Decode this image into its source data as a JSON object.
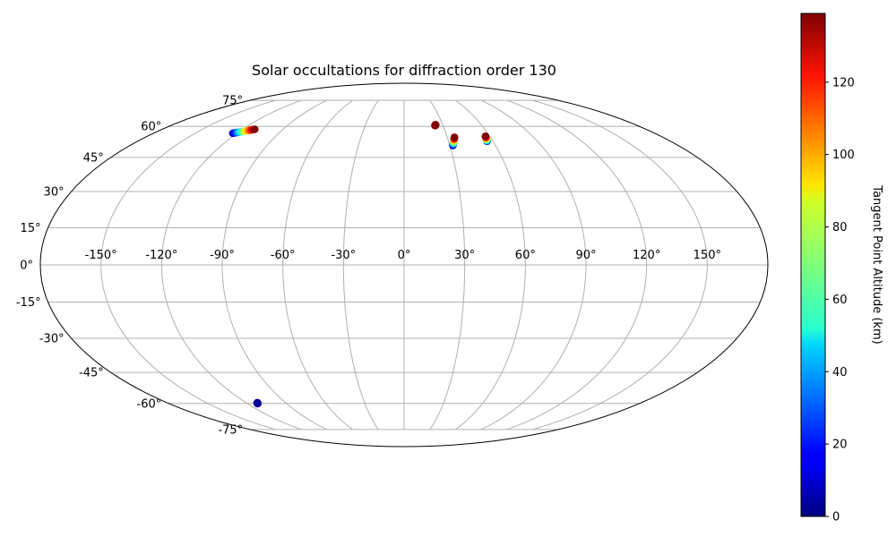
{
  "chart_data": {
    "type": "scatter",
    "projection": "mollweide",
    "title": "Solar occultations for diffraction order 130",
    "lon_ticks": [
      -150,
      -120,
      -90,
      -60,
      -30,
      0,
      30,
      60,
      90,
      120,
      150
    ],
    "lat_ticks": [
      -75,
      -60,
      -45,
      -30,
      -15,
      0,
      15,
      30,
      45,
      60,
      75
    ],
    "lon_tick_labels": [
      "-150°",
      "-120°",
      "-90°",
      "-60°",
      "-30°",
      "0°",
      "30°",
      "60°",
      "90°",
      "120°",
      "150°"
    ],
    "lat_tick_labels": [
      "-75°",
      "-60°",
      "-45°",
      "-30°",
      "-15°",
      "0°",
      "15°",
      "30°",
      "45°",
      "60°",
      "75°"
    ],
    "grid": true,
    "colormap": "jet",
    "colorbar": {
      "label": "Tangent Point Altitude (km)",
      "range": [
        0,
        139
      ],
      "ticks": [
        0,
        20,
        40,
        60,
        80,
        100,
        120
      ],
      "tick_labels": [
        "0",
        "20",
        "40",
        "60",
        "80",
        "100",
        "120"
      ]
    },
    "tracks": [
      {
        "lon": [
          -123,
          -111
        ],
        "lat": [
          56.5,
          58.5
        ],
        "alt": [
          5,
          139
        ]
      },
      {
        "lon": [
          32,
          35
        ],
        "lat": [
          50.5,
          54.5
        ],
        "alt": [
          5,
          139
        ]
      },
      {
        "lon": [
          56,
          57
        ],
        "lat": [
          52.5,
          55
        ],
        "alt": [
          20,
          139
        ]
      }
    ],
    "points": [
      {
        "lon": 24,
        "lat": 60.5,
        "alt": 139
      },
      {
        "lon": -112,
        "lat": -60,
        "alt": 3
      }
    ]
  }
}
